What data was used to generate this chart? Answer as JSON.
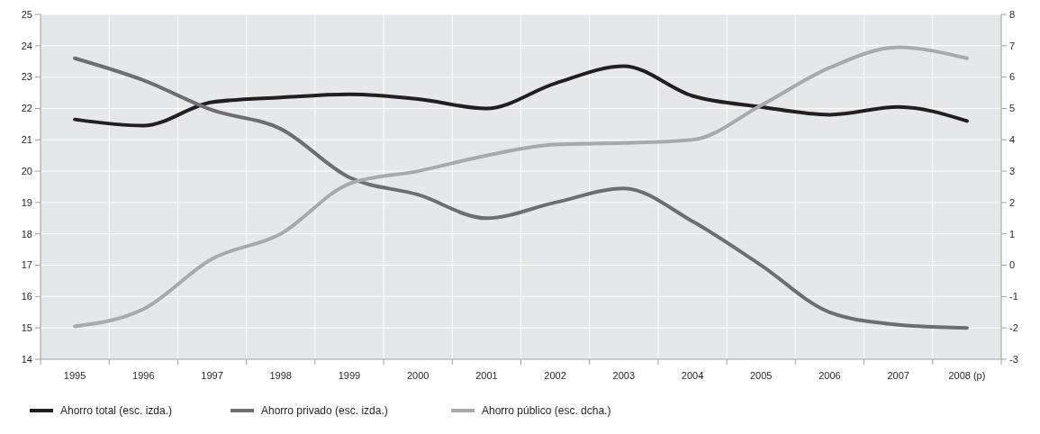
{
  "chart_data": {
    "type": "line",
    "categories": [
      "1995",
      "1996",
      "1997",
      "1998",
      "1999",
      "2000",
      "2001",
      "2002",
      "2003",
      "2004",
      "2005",
      "2006",
      "2007",
      "2008 (p)"
    ],
    "series": [
      {
        "name": "Ahorro total (esc. izda.)",
        "color": "#231f20",
        "values": [
          21.65,
          21.45,
          22.2,
          22.35,
          22.45,
          22.3,
          22.0,
          22.8,
          23.35,
          22.4,
          22.05,
          21.8,
          22.05,
          21.6
        ]
      },
      {
        "name": "Ahorro privado (esc. izda.)",
        "color": "#6d6e71",
        "values": [
          23.6,
          22.9,
          21.95,
          21.35,
          19.8,
          19.25,
          18.5,
          19.0,
          19.45,
          18.4,
          17.0,
          15.5,
          15.1,
          15.0
        ]
      },
      {
        "name": "Ahorro público (esc. dcha.)",
        "color": "#a7a9ac",
        "axis": "y2",
        "values": [
          -1.95,
          -1.4,
          0.2,
          1.0,
          2.6,
          3.0,
          3.5,
          3.85,
          3.9,
          4.0,
          5.1,
          6.3,
          6.95,
          6.6
        ]
      }
    ],
    "ylim": [
      14,
      25
    ],
    "yticks": [
      14,
      15,
      16,
      17,
      18,
      19,
      20,
      21,
      22,
      23,
      24,
      25
    ],
    "y2lim": [
      -3,
      8
    ],
    "y2ticks": [
      -3,
      -2,
      -1,
      0,
      1,
      2,
      3,
      4,
      5,
      6,
      7,
      8
    ],
    "grid": true,
    "legend": "bottom",
    "line_style": "solid"
  }
}
